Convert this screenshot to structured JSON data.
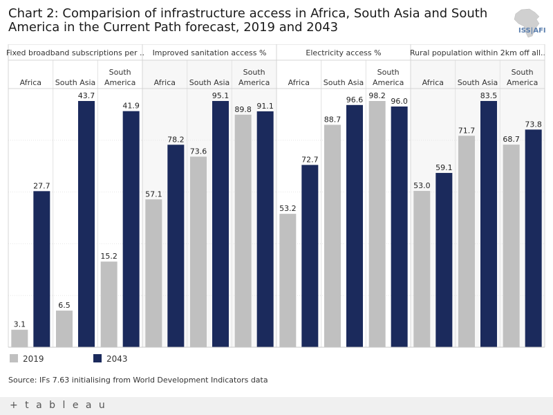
{
  "title": "Chart 2: Comparision of infrastructure access in Africa, South Asia and South America in the Current Path forecast, 2019 and 2043",
  "logo": {
    "text": "ISS|AFI",
    "icon": "africa-map-logo"
  },
  "chart_data": {
    "type": "bar",
    "panels": [
      {
        "label": "Fixed broadband subscriptions per ..",
        "groups": [
          {
            "label": "Africa",
            "values": [
              3.1,
              27.7
            ]
          },
          {
            "label": "South Asia",
            "values": [
              6.5,
              43.7
            ]
          },
          {
            "label": "South America",
            "values": [
              15.2,
              41.9
            ]
          }
        ]
      },
      {
        "label": "Improved sanitation access %",
        "groups": [
          {
            "label": "Africa",
            "values": [
              57.1,
              78.2
            ]
          },
          {
            "label": "South Asia",
            "values": [
              73.6,
              95.1
            ]
          },
          {
            "label": "South America",
            "values": [
              89.8,
              91.1
            ]
          }
        ]
      },
      {
        "label": "Electricity access %",
        "groups": [
          {
            "label": "Africa",
            "values": [
              53.2,
              72.7
            ]
          },
          {
            "label": "South Asia",
            "values": [
              88.7,
              96.6
            ]
          },
          {
            "label": "South America",
            "values": [
              98.2,
              96.0
            ]
          }
        ]
      },
      {
        "label": "Rural population within 2km off all..",
        "groups": [
          {
            "label": "Africa",
            "values": [
              53.0,
              59.1
            ]
          },
          {
            "label": "South Asia",
            "values": [
              71.7,
              83.5
            ]
          },
          {
            "label": "South America",
            "values": [
              68.7,
              73.8
            ]
          }
        ]
      }
    ],
    "series": [
      {
        "name": "2019",
        "color": "#c0c0c0"
      },
      {
        "name": "2043",
        "color": "#1b2a5c"
      }
    ],
    "independent_axes": true,
    "grid": true,
    "legend": "bottom-left"
  },
  "legend": {
    "items": [
      "2019",
      "2043"
    ]
  },
  "source": "Source: IFs 7.63 initialising from World Development Indicators data",
  "footer": {
    "brand": "+ t a b l e a u",
    "icon": "tableau-logo"
  }
}
